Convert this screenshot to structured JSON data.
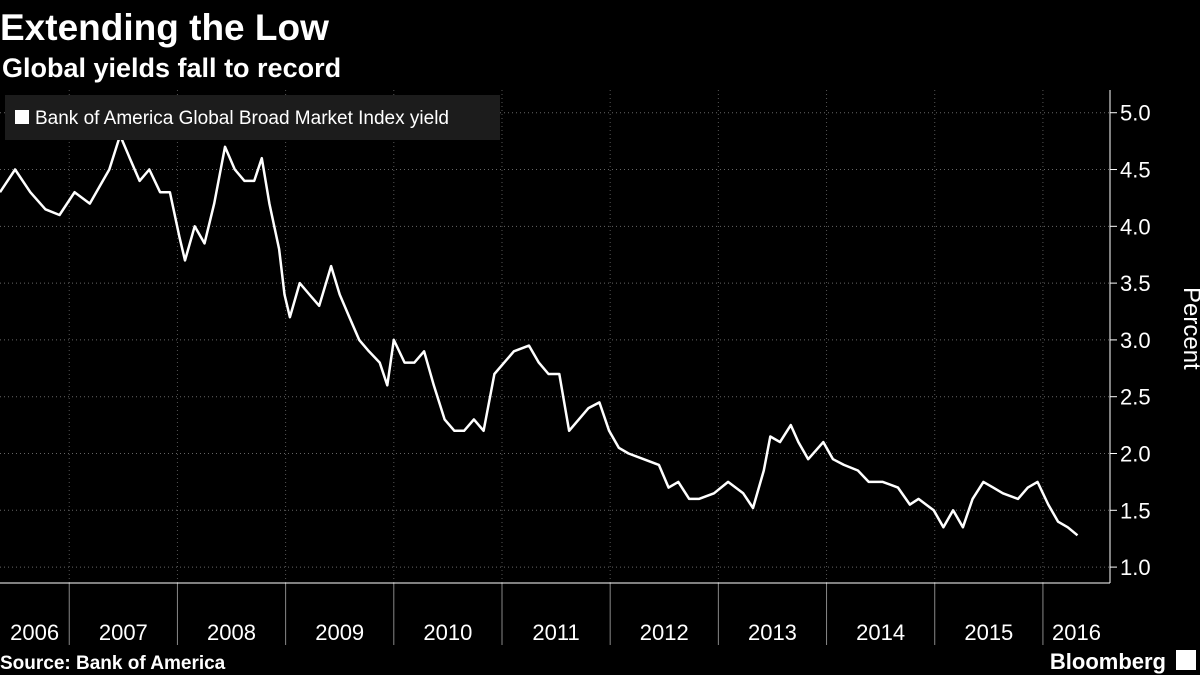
{
  "chart_data": {
    "type": "line",
    "title": "Extending the Low",
    "subtitle": "Global yields fall to record",
    "y_label": "Percent",
    "source": "Source: Bank of America",
    "brand": "Bloomberg",
    "x": [
      2006.36,
      2006.5,
      2006.64,
      2006.78,
      2006.91,
      2007.05,
      2007.19,
      2007.28,
      2007.37,
      2007.47,
      2007.56,
      2007.65,
      2007.74,
      2007.84,
      2007.93,
      2008.02,
      2008.07,
      2008.16,
      2008.25,
      2008.34,
      2008.44,
      2008.53,
      2008.62,
      2008.71,
      2008.78,
      2008.85,
      2008.94,
      2008.99,
      2009.04,
      2009.13,
      2009.22,
      2009.31,
      2009.42,
      2009.5,
      2009.59,
      2009.68,
      2009.77,
      2009.87,
      2009.94,
      2010.0,
      2010.1,
      2010.19,
      2010.28,
      2010.37,
      2010.47,
      2010.56,
      2010.65,
      2010.74,
      2010.83,
      2010.93,
      2011.02,
      2011.11,
      2011.25,
      2011.34,
      2011.43,
      2011.53,
      2011.62,
      2011.71,
      2011.8,
      2011.9,
      2011.99,
      2012.08,
      2012.17,
      2012.31,
      2012.45,
      2012.54,
      2012.63,
      2012.73,
      2012.82,
      2012.96,
      2013.09,
      2013.23,
      2013.32,
      2013.42,
      2013.48,
      2013.57,
      2013.67,
      2013.74,
      2013.83,
      2013.97,
      2014.06,
      2014.16,
      2014.29,
      2014.39,
      2014.52,
      2014.66,
      2014.77,
      2014.85,
      2014.99,
      2015.08,
      2015.17,
      2015.26,
      2015.35,
      2015.45,
      2015.54,
      2015.63,
      2015.77,
      2015.86,
      2015.95,
      2016.05,
      2016.14,
      2016.23,
      2016.32
    ],
    "series": [
      {
        "name": "Bank of America Global Broad Market Index yield",
        "color": "#ffffff",
        "values": [
          4.3,
          4.5,
          4.3,
          4.15,
          4.1,
          4.3,
          4.2,
          4.35,
          4.5,
          4.8,
          4.6,
          4.4,
          4.5,
          4.3,
          4.3,
          3.9,
          3.7,
          4.0,
          3.85,
          4.2,
          4.7,
          4.5,
          4.4,
          4.4,
          4.6,
          4.2,
          3.8,
          3.4,
          3.2,
          3.5,
          3.4,
          3.3,
          3.65,
          3.4,
          3.2,
          3.0,
          2.9,
          2.8,
          2.6,
          3.0,
          2.8,
          2.8,
          2.9,
          2.6,
          2.3,
          2.2,
          2.2,
          2.3,
          2.2,
          2.7,
          2.8,
          2.9,
          2.95,
          2.8,
          2.7,
          2.7,
          2.2,
          2.3,
          2.4,
          2.45,
          2.2,
          2.05,
          2.0,
          1.95,
          1.9,
          1.7,
          1.75,
          1.6,
          1.6,
          1.65,
          1.75,
          1.65,
          1.52,
          1.85,
          2.15,
          2.1,
          2.25,
          2.1,
          1.95,
          2.1,
          1.95,
          1.9,
          1.85,
          1.75,
          1.75,
          1.7,
          1.55,
          1.6,
          1.5,
          1.35,
          1.5,
          1.35,
          1.6,
          1.75,
          1.7,
          1.65,
          1.6,
          1.7,
          1.75,
          1.55,
          1.4,
          1.35,
          1.28
        ]
      }
    ],
    "xlim": [
      2006.36,
      2016.62
    ],
    "xticks": [
      2006,
      2007,
      2008,
      2009,
      2010,
      2011,
      2012,
      2013,
      2014,
      2015,
      2016
    ],
    "ylim": [
      0.86,
      5.2
    ],
    "yticks": [
      {
        "value": 1.0,
        "label": "1.0"
      },
      {
        "value": 1.5,
        "label": "1.5"
      },
      {
        "value": 2.0,
        "label": "2.0"
      },
      {
        "value": 2.5,
        "label": "2.5"
      },
      {
        "value": 3.0,
        "label": "3.0"
      },
      {
        "value": 3.5,
        "label": "3.5"
      },
      {
        "value": 4.0,
        "label": "4.0"
      },
      {
        "value": 4.5,
        "label": "4.5"
      },
      {
        "value": 5.0,
        "label": "5.0"
      }
    ],
    "grid": true
  }
}
